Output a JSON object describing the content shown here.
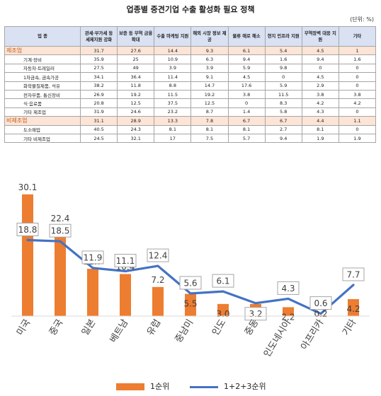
{
  "page": {
    "title": "업종별 중견기업 수출 활성화 필요 정책",
    "unit": "(단위: %)"
  },
  "table": {
    "headers": [
      "업 종",
      "관세·부가세 등 세제지원 강화",
      "보증 등 무역 금융 확대",
      "수출 마케팅 지원",
      "해외 시장 정보 제공",
      "물류 애로 해소",
      "현지 인프라 지원",
      "무역장벽 대응 지원",
      "기타"
    ],
    "groups": [
      {
        "label": "제조업",
        "values": [
          "31.7",
          "27.6",
          "14.4",
          "9.3",
          "6.1",
          "5.4",
          "4.5",
          "1"
        ],
        "rows": [
          {
            "label": "기계·장비",
            "values": [
              "35.9",
              "25",
              "10.9",
              "6.3",
              "9.4",
              "1.6",
              "9.4",
              "1.6"
            ]
          },
          {
            "label": "자동차·트레일러",
            "values": [
              "27.5",
              "49",
              "3.9",
              "3.9",
              "5.9",
              "9.8",
              "0",
              "0"
            ]
          },
          {
            "label": "1차금속, 금속가공",
            "values": [
              "34.1",
              "36.4",
              "11.4",
              "9.1",
              "4.5",
              "0",
              "4.5",
              "0"
            ]
          },
          {
            "label": "화학물질제품, 석유",
            "values": [
              "38.2",
              "11.8",
              "8.8",
              "14.7",
              "17.6",
              "5.9",
              "2.9",
              "0"
            ]
          },
          {
            "label": "전자부품, 통신장비",
            "values": [
              "26.9",
              "19.2",
              "11.5",
              "19.2",
              "3.8",
              "11.5",
              "3.8",
              "3.8"
            ]
          },
          {
            "label": "식·음료품",
            "values": [
              "20.8",
              "12.5",
              "37.5",
              "12.5",
              "0",
              "8.3",
              "4.2",
              "4.2"
            ]
          },
          {
            "label": "기타 제조업",
            "values": [
              "31.9",
              "24.6",
              "23.2",
              "8.7",
              "1.4",
              "5.8",
              "4.3",
              "0"
            ]
          }
        ]
      },
      {
        "label": "비제조업",
        "values": [
          "31.1",
          "28.9",
          "13.3",
          "7.8",
          "6.7",
          "6.7",
          "4.4",
          "1.1"
        ],
        "rows": [
          {
            "label": "도소매업",
            "values": [
              "40.5",
              "24.3",
              "8.1",
              "8.1",
              "8.1",
              "2.7",
              "8.1",
              "0"
            ]
          },
          {
            "label": "기타 비제조업",
            "values": [
              "24.5",
              "32.1",
              "17",
              "7.5",
              "5.7",
              "9.4",
              "1.9",
              "1.9"
            ]
          }
        ]
      }
    ]
  },
  "chart_data": {
    "type": "bar",
    "categories": [
      "미국",
      "중국",
      "일본",
      "베트남",
      "유럽",
      "중남미",
      "인도",
      "중동",
      "인도네시아",
      "아프리카",
      "기타"
    ],
    "series": [
      {
        "name": "1순위",
        "type": "bar",
        "color": "#ed7d31",
        "values": [
          30.1,
          22.4,
          11.7,
          10.4,
          7.2,
          5.5,
          3.0,
          3.0,
          2.2,
          0.2,
          4.2
        ]
      },
      {
        "name": "1+2+3순위",
        "type": "line",
        "color": "#4472c4",
        "values": [
          18.8,
          18.5,
          11.9,
          11.1,
          12.4,
          5.6,
          6.1,
          3.2,
          4.3,
          0.6,
          7.7
        ]
      }
    ],
    "ylim": [
      0,
      32
    ],
    "grid": false,
    "legend": "bottom"
  }
}
